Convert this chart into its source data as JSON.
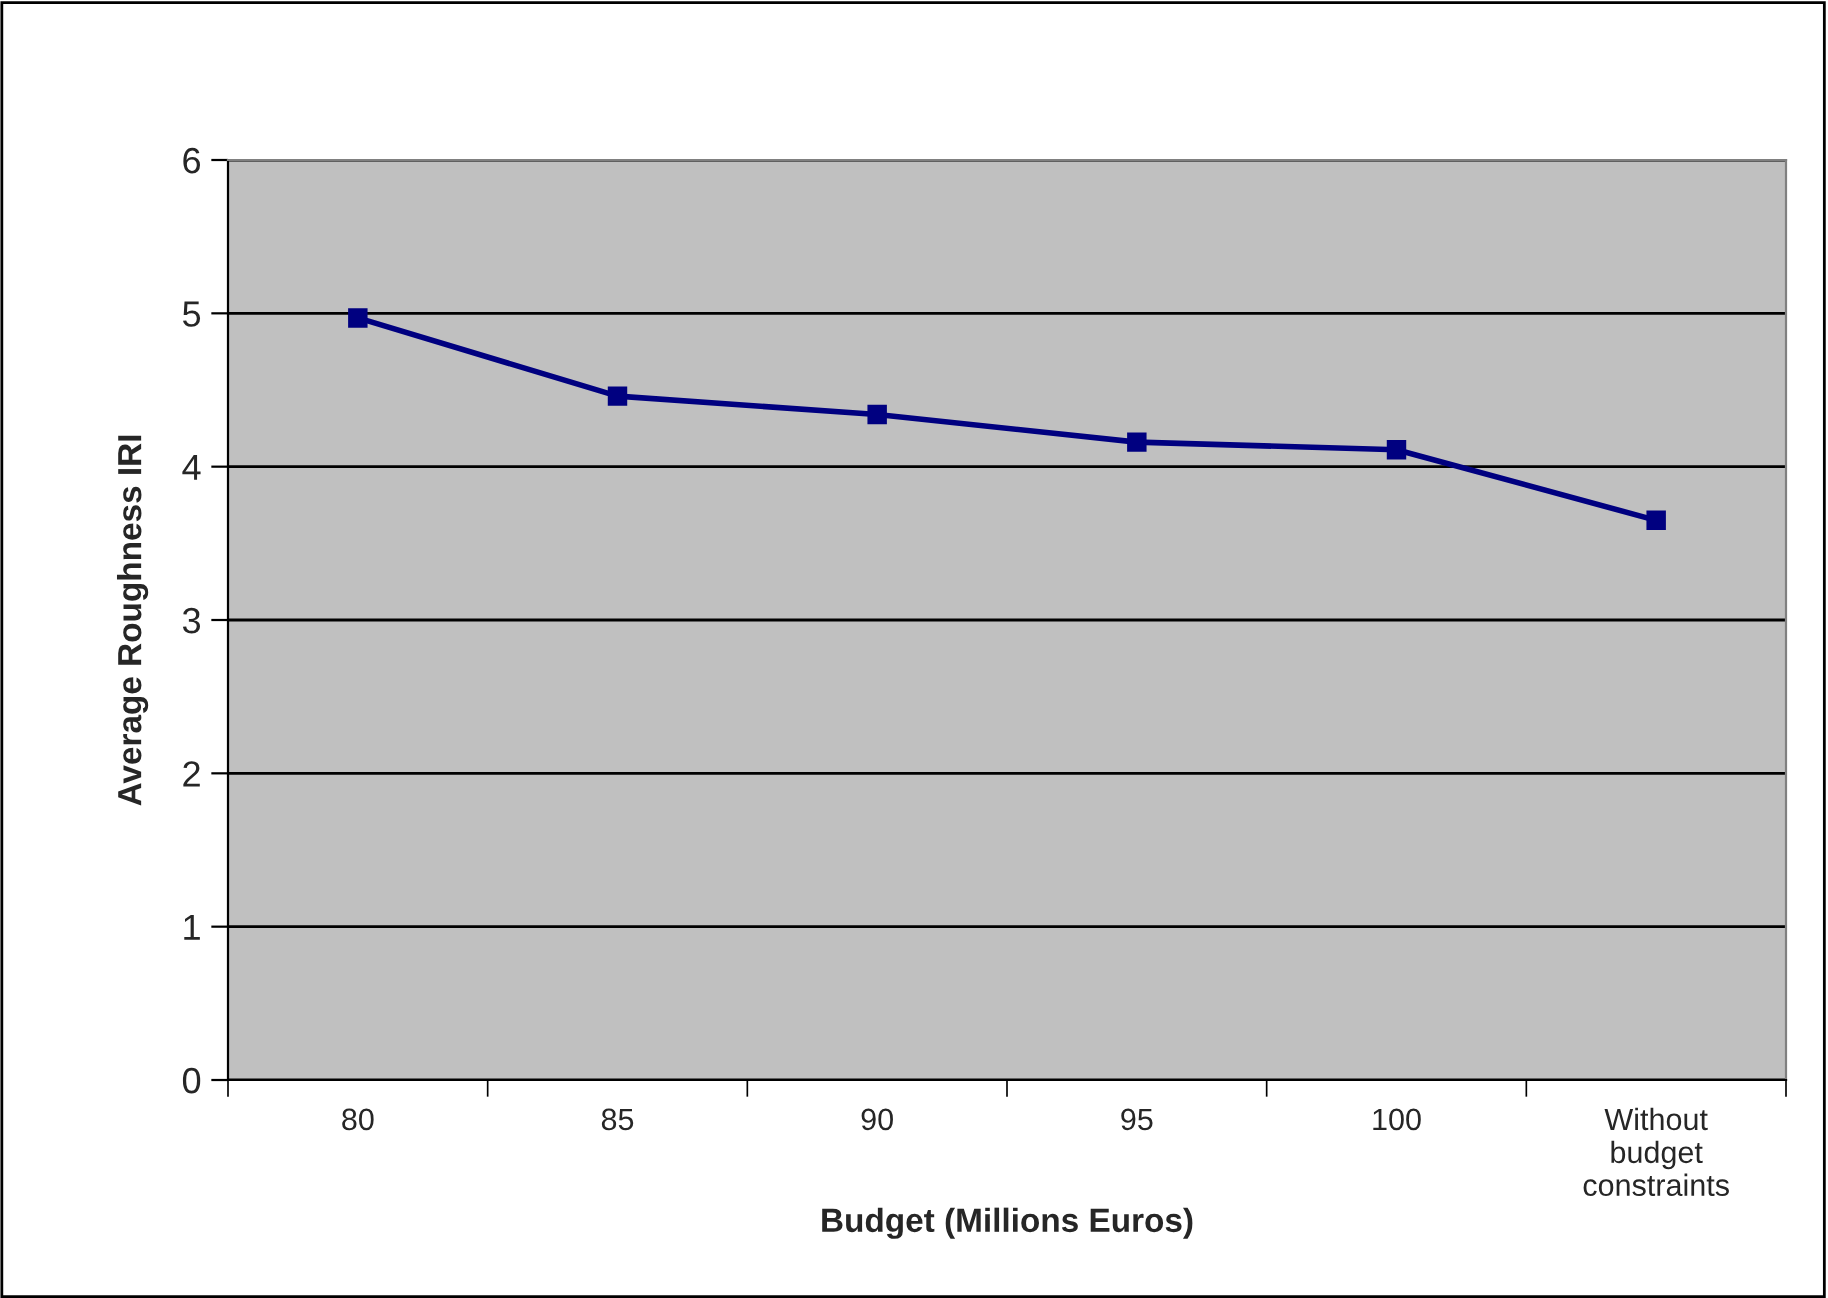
{
  "chart_data": {
    "type": "line",
    "xlabel": "Budget (Millions Euros)",
    "ylabel": "Average Roughness IRI",
    "categories": [
      "80",
      "85",
      "90",
      "95",
      "100",
      "Without\nbudget\nconstraints"
    ],
    "series": [
      {
        "color": "#000080",
        "values": [
          4.97,
          4.46,
          4.34,
          4.16,
          4.11,
          3.65
        ]
      }
    ],
    "ylim": [
      0,
      6
    ],
    "yticks": [
      0,
      1,
      2,
      3,
      4,
      5,
      6
    ],
    "grid": "y",
    "marker": "square",
    "line_style": "solid"
  }
}
